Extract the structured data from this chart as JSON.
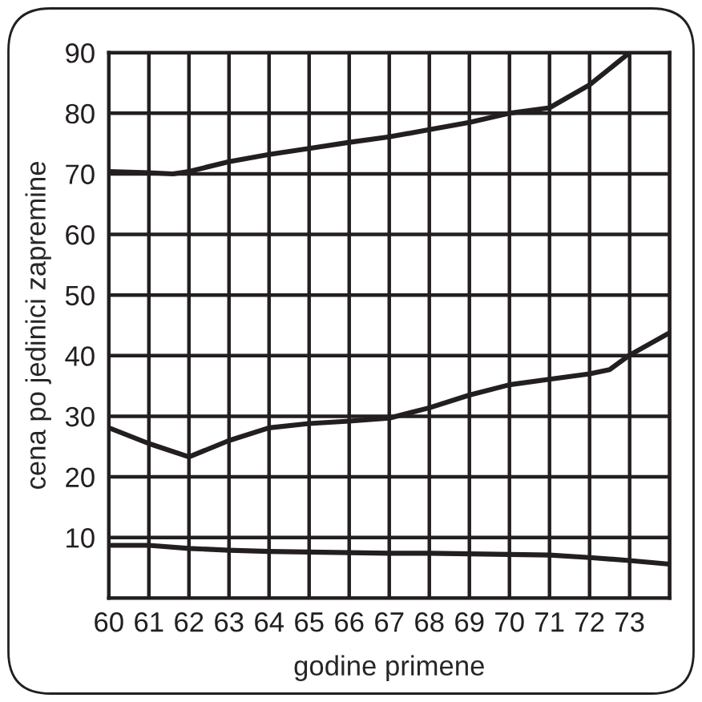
{
  "chart_data": {
    "type": "line",
    "xlabel": "godine primene",
    "ylabel": "cena po jedinici zapremine",
    "xlim": [
      60,
      74
    ],
    "ylim": [
      0,
      90
    ],
    "xticks": [
      60,
      61,
      62,
      63,
      64,
      65,
      66,
      67,
      68,
      69,
      70,
      71,
      72,
      73,
      {
        "value": 74,
        "label": null
      }
    ],
    "yticks": [
      {
        "value": 0,
        "label": null
      },
      10,
      20,
      30,
      40,
      50,
      60,
      70,
      80,
      90
    ],
    "grid": true,
    "marker": "none",
    "line_style": "solid",
    "series": [
      {
        "color": "#231f20",
        "x": [
          60,
          61,
          61.6,
          62,
          63,
          64,
          65,
          66,
          67,
          68,
          69,
          70,
          71,
          72,
          73
        ],
        "values": [
          70.4,
          70.2,
          70,
          70.4,
          72,
          73.2,
          74.2,
          75.2,
          76.1,
          77.3,
          78.5,
          80,
          80.9,
          84.7,
          90
        ]
      },
      {
        "color": "#231f20",
        "x": [
          60,
          61,
          62,
          63,
          64,
          65,
          66,
          67,
          68,
          69,
          70,
          71,
          72,
          72.5,
          73,
          74
        ],
        "values": [
          28.1,
          25.5,
          23.3,
          26,
          28.1,
          28.8,
          29.2,
          29.7,
          31.4,
          33.5,
          35.2,
          36.1,
          37,
          37.7,
          40.1,
          43.8
        ]
      },
      {
        "color": "#231f20",
        "x": [
          60,
          61,
          62,
          63,
          64,
          65,
          66,
          67,
          68,
          69,
          70,
          71,
          72,
          73,
          74
        ],
        "values": [
          8.7,
          8.7,
          8.2,
          7.9,
          7.7,
          7.6,
          7.5,
          7.4,
          7.4,
          7.3,
          7.2,
          7.1,
          6.7,
          6.2,
          5.6
        ]
      }
    ]
  }
}
